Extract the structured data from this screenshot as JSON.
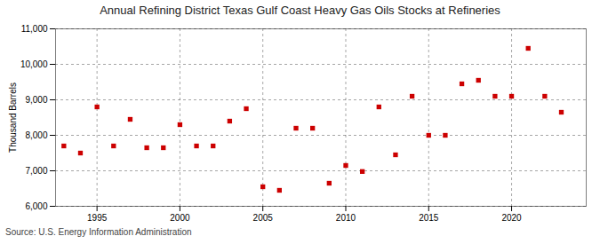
{
  "chart_data": {
    "type": "scatter",
    "title": "Annual Refining District Texas Gulf Coast Heavy Gas Oils Stocks at Refineries",
    "ylabel": "Thousand Barrels",
    "source": "Source: U.S. Energy Information Administration",
    "x": [
      1993,
      1994,
      1995,
      1996,
      1997,
      1998,
      1999,
      2000,
      2001,
      2002,
      2003,
      2004,
      2005,
      2006,
      2007,
      2008,
      2009,
      2010,
      2011,
      2012,
      2013,
      2014,
      2015,
      2016,
      2017,
      2018,
      2019,
      2020,
      2021,
      2022,
      2023
    ],
    "values": [
      7700,
      7500,
      8800,
      7700,
      8450,
      7650,
      7650,
      8300,
      7700,
      7700,
      8400,
      8750,
      6550,
      6450,
      8200,
      8200,
      6650,
      7150,
      6980,
      8800,
      7450,
      9100,
      8000,
      8000,
      9450,
      9550,
      9100,
      9100,
      10450,
      9100,
      8650
    ],
    "color": "#cc0000",
    "marker": "square",
    "xlim": [
      1992.5,
      2024.5
    ],
    "xticks": [
      1995,
      2000,
      2005,
      2010,
      2015,
      2020
    ],
    "ylim": [
      6000,
      11000
    ],
    "yticks": [
      {
        "value": 6000,
        "label": "6,000"
      },
      {
        "value": 7000,
        "label": "7,000"
      },
      {
        "value": 8000,
        "label": "8,000"
      },
      {
        "value": 9000,
        "label": "9,000"
      },
      {
        "value": 10000,
        "label": "10,000"
      },
      {
        "value": 11000,
        "label": "11,000"
      }
    ],
    "grid": true
  }
}
